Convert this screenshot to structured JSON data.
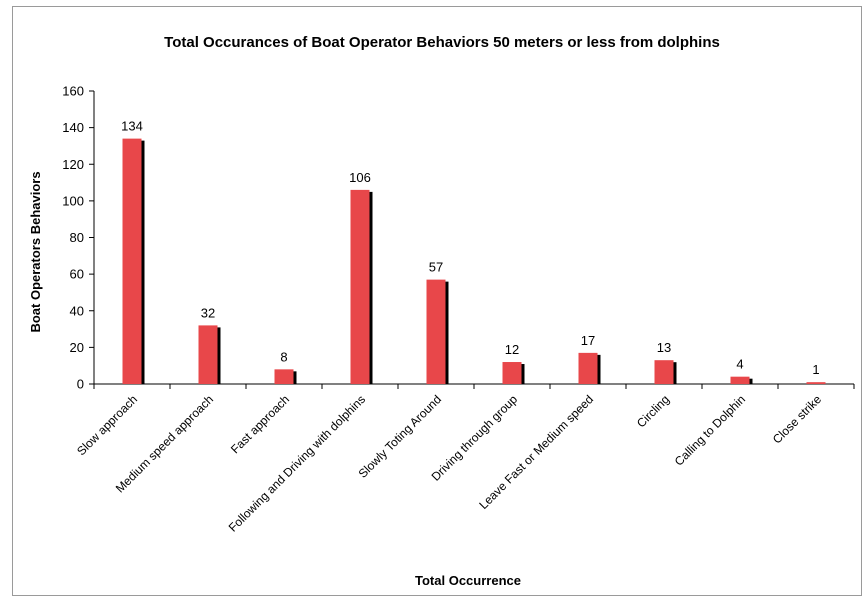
{
  "chart_data": {
    "type": "bar",
    "title": "Total Occurances of Boat Operator Behaviors 50 meters or less from dolphins",
    "xlabel": "Total Occurrence",
    "ylabel": "Boat Operators Behaviors",
    "ylim": [
      0,
      160
    ],
    "yticks": [
      "0",
      "20",
      "40",
      "60",
      "80",
      "100",
      "120",
      "140",
      "160"
    ],
    "grid": false,
    "legend": "none",
    "categories": [
      "Slow approach",
      "Medium speed approach",
      "Fast approach",
      "Following and Driving with dolphins",
      "Slowly Toting Around",
      "Driving through group",
      "Leave Fast or Medium speed",
      "Circling",
      "Calling to Dolphin",
      "Close strike"
    ],
    "values": [
      134,
      32,
      8,
      106,
      57,
      12,
      17,
      13,
      4,
      1
    ],
    "data_labels": [
      "134",
      "32",
      "8",
      "106",
      "57",
      "12",
      "17",
      "13",
      "4",
      "1"
    ],
    "colors": {
      "bar": "#e8474a",
      "shadow": "#000000",
      "axis": "#000000"
    }
  }
}
